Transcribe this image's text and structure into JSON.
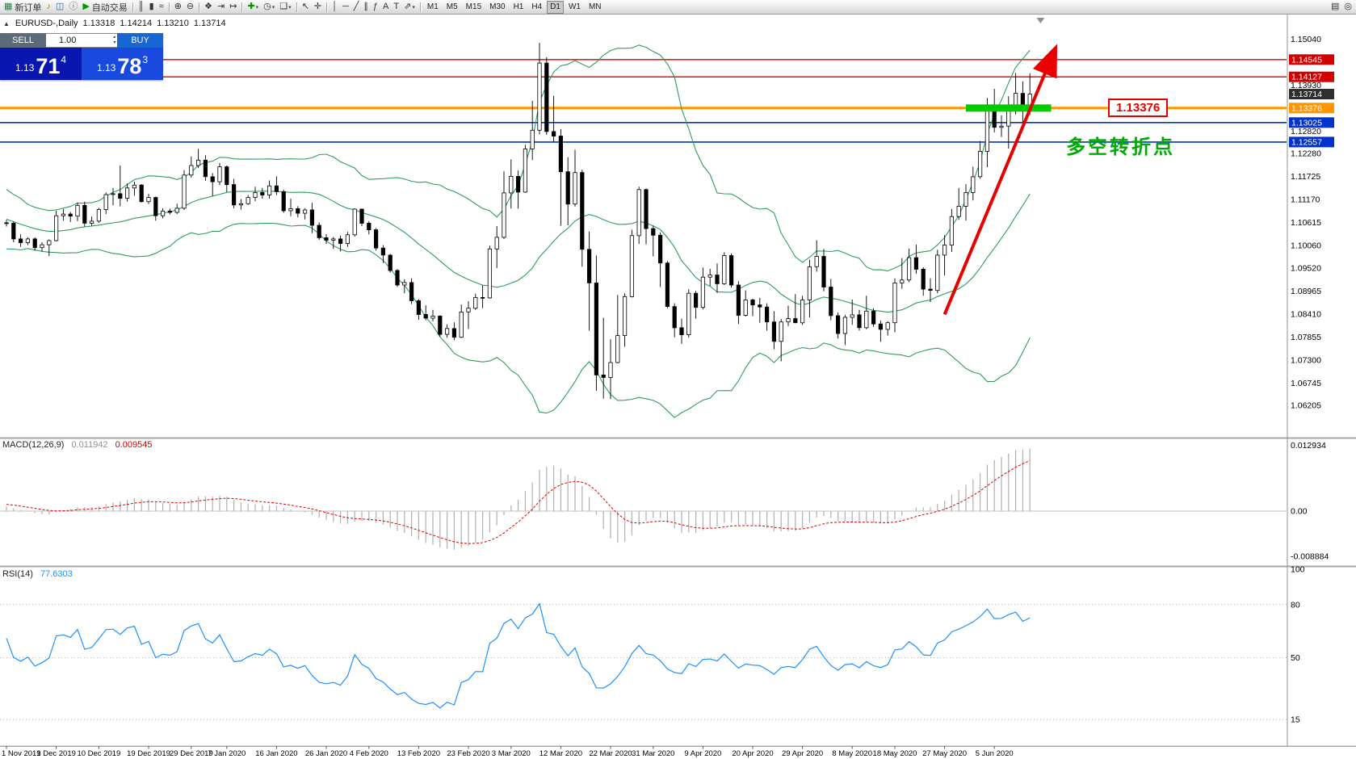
{
  "colors": {
    "up_candle": "#ffffff",
    "down_candle": "#000000",
    "candle_border": "#000000",
    "bollinger": "#2e9e5b",
    "macd_hist": "#b4b4b4",
    "macd_signal": "#e00000",
    "rsi_line": "#1e90ff",
    "level_red": "#d40000",
    "level_blue": "#0033cc",
    "level_orange": "#ff9500",
    "zone_green": "#00cc00",
    "arrow_red": "#e80000",
    "annotation_green": "#00aa00",
    "current_badge": "#2f2f2f"
  },
  "toolbar": {
    "groups": [
      [
        {
          "name": "new-order-button",
          "glyph": "▦",
          "icon_name": "new-order-icon",
          "label": "新订单",
          "color": "#2e7d4f"
        },
        {
          "name": "alerts-icon",
          "glyph": "♪",
          "color": "#b08800"
        },
        {
          "name": "market-watch-icon",
          "glyph": "◫",
          "color": "#336699"
        },
        {
          "name": "info-icon",
          "glyph": "ⓘ",
          "color": "#666666"
        },
        {
          "name": "auto-trading-button",
          "glyph": "▶",
          "icon_name": "play-icon",
          "label": "自动交易",
          "color": "#009900"
        }
      ],
      [
        {
          "name": "bar-chart-icon",
          "glyph": "║"
        },
        {
          "name": "candlestick-chart-icon",
          "glyph": "▮"
        },
        {
          "name": "line-chart-icon",
          "glyph": "≈"
        }
      ],
      [
        {
          "name": "zoom-in-icon",
          "glyph": "⊕"
        },
        {
          "name": "zoom-out-icon",
          "glyph": "⊖"
        }
      ],
      [
        {
          "name": "tile-windows-icon",
          "glyph": "❖"
        },
        {
          "name": "auto-scroll-icon",
          "glyph": "⇥"
        },
        {
          "name": "chart-shift-icon",
          "glyph": "↦"
        }
      ],
      [
        {
          "name": "indicators-icon",
          "glyph": "✚",
          "color": "#009900",
          "dropdown": true
        },
        {
          "name": "periods-icon",
          "glyph": "◷",
          "dropdown": true
        },
        {
          "name": "templates-icon",
          "glyph": "❏",
          "dropdown": true
        }
      ],
      [
        {
          "name": "cursor-icon",
          "glyph": "↖"
        },
        {
          "name": "crosshair-icon",
          "glyph": "✛"
        }
      ],
      [
        {
          "name": "vertical-line-icon",
          "glyph": "│"
        },
        {
          "name": "horizontal-line-icon",
          "glyph": "─"
        },
        {
          "name": "trendline-icon",
          "glyph": "╱"
        },
        {
          "name": "channel-icon",
          "glyph": "∥"
        },
        {
          "name": "fibonacci-icon",
          "glyph": "ƒ"
        },
        {
          "name": "text-icon",
          "glyph": "A"
        },
        {
          "name": "label-icon",
          "glyph": "T"
        },
        {
          "name": "arrows-icon",
          "glyph": "⇗",
          "dropdown": true
        }
      ]
    ],
    "timeframes": [
      "M1",
      "M5",
      "M15",
      "M30",
      "H1",
      "H4",
      "D1",
      "W1",
      "MN"
    ],
    "active_timeframe": "D1",
    "right_icons": [
      {
        "name": "print-icon",
        "glyph": "▤"
      },
      {
        "name": "search-icon",
        "glyph": "◎"
      }
    ]
  },
  "chart_header": {
    "collapse_glyph": "▲",
    "symbol": "EURUSD-,Daily",
    "open": "1.13318",
    "high": "1.14214",
    "low": "1.13210",
    "close": "1.13714"
  },
  "quote_panel": {
    "sell_label": "SELL",
    "buy_label": "BUY",
    "volume": "1.00",
    "bid_prefix": "1.13",
    "bid_big": "71",
    "bid_pip": "4",
    "ask_prefix": "1.13",
    "ask_big": "78",
    "ask_pip": "3",
    "spinner_up": "▴",
    "spinner_down": "▾"
  },
  "indicators": {
    "macd": {
      "label": "MACD(12,26,9)",
      "value_main": "0.011942",
      "value_signal": "0.009545",
      "scale": [
        {
          "text": "0.012934",
          "value": 0.012934
        },
        {
          "text": "0.00",
          "value": 0
        },
        {
          "text": "-0.008884",
          "value": -0.008884
        }
      ],
      "fast": 12,
      "slow": 26,
      "signal": 9
    },
    "rsi": {
      "label": "RSI(14)",
      "value": "77.6303",
      "period": 14,
      "scale": [
        {
          "text": "100",
          "value": 100
        },
        {
          "text": "80",
          "value": 80
        },
        {
          "text": "50",
          "value": 50
        },
        {
          "text": "15",
          "value": 15
        }
      ],
      "level_lines": [
        80,
        50,
        15
      ]
    },
    "bollinger": {
      "period": 20,
      "deviation": 2
    }
  },
  "levels": [
    {
      "label": "1.14545",
      "price": 1.14545,
      "color": "#d40000",
      "width": 1.3
    },
    {
      "label": "1.14127",
      "price": 1.14127,
      "color": "#d40000",
      "width": 1.3
    },
    {
      "label": "1.13376",
      "price": 1.13376,
      "color": "#ff9500",
      "width": 3
    },
    {
      "label": "1.13025",
      "price": 1.13025,
      "color": "#0033cc",
      "width": 1.6
    },
    {
      "label": "1.12557",
      "price": 1.12557,
      "color": "#0033cc",
      "width": 1.6
    }
  ],
  "current_price": {
    "label": "1.13714",
    "price": 1.13714
  },
  "price_scale_ticks": [
    "1.15040",
    "1.13930",
    "1.12820",
    "1.12280",
    "1.11725",
    "1.11170",
    "1.10615",
    "1.10060",
    "1.09520",
    "1.08965",
    "1.08410",
    "1.07855",
    "1.07300",
    "1.06745",
    "1.06205"
  ],
  "annotations": {
    "price_label": "1.13376",
    "turning_point_text": "多空转折点",
    "green_zone": {
      "from_bar": 135,
      "to_bar": 147,
      "price": 1.13376,
      "height": 9
    },
    "arrow": {
      "from_bar": 132,
      "from_price": 1.084,
      "to_bar": 147.5,
      "to_price": 1.1478,
      "width": 4
    },
    "shift_marker_bar": 145.5
  },
  "date_labels": [
    {
      "text": "1 Nov 2019",
      "bar": 0
    },
    {
      "text": "1 Dec 2019",
      "bar": 7
    },
    {
      "text": "10 Dec 2019",
      "bar": 13
    },
    {
      "text": "19 Dec 2019",
      "bar": 20
    },
    {
      "text": "29 Dec 2019",
      "bar": 26
    },
    {
      "text": "7 Jan 2020",
      "bar": 31
    },
    {
      "text": "16 Jan 2020",
      "bar": 38
    },
    {
      "text": "26 Jan 2020",
      "bar": 45
    },
    {
      "text": "4 Feb 2020",
      "bar": 51
    },
    {
      "text": "13 Feb 2020",
      "bar": 58
    },
    {
      "text": "23 Feb 2020",
      "bar": 65
    },
    {
      "text": "3 Mar 2020",
      "bar": 71
    },
    {
      "text": "12 Mar 2020",
      "bar": 78
    },
    {
      "text": "22 Mar 2020",
      "bar": 85
    },
    {
      "text": "31 Mar 2020",
      "bar": 91
    },
    {
      "text": "9 Apr 2020",
      "bar": 98
    },
    {
      "text": "20 Apr 2020",
      "bar": 105
    },
    {
      "text": "29 Apr 2020",
      "bar": 112
    },
    {
      "text": "8 May 2020",
      "bar": 119
    },
    {
      "text": "18 May 2020",
      "bar": 125
    },
    {
      "text": "27 May 2020",
      "bar": 132
    },
    {
      "text": "5 Jun 2020",
      "bar": 139
    }
  ],
  "chart_data": {
    "type": "candlestick",
    "symbol": "EURUSD",
    "period": "Daily",
    "warmup_closes": [
      1.093,
      1.0971,
      1.1004,
      1.1025,
      1.1032,
      1.1026,
      1.1074,
      1.107,
      1.1124,
      1.1128,
      1.1152,
      1.1144,
      1.1129,
      1.1134,
      1.1106,
      1.1086,
      1.1072,
      1.107,
      1.1052,
      1.1031,
      1.1016,
      1.1012,
      1.1023,
      1.1052,
      1.1071,
      1.1078,
      1.1074,
      1.1063,
      1.1058,
      1.1061
    ],
    "candles": [
      [
        1.1061,
        1.1068,
        1.1052,
        1.106
      ],
      [
        1.106,
        1.1064,
        1.1014,
        1.1022
      ],
      [
        1.1022,
        1.1033,
        1.1003,
        1.1013
      ],
      [
        1.1013,
        1.1026,
        1.1007,
        1.1022
      ],
      [
        1.1022,
        1.1026,
        1.0994,
        1.1001
      ],
      [
        1.1001,
        1.1014,
        1.0992,
        1.1008
      ],
      [
        1.1008,
        1.1021,
        1.0981,
        1.1018
      ],
      [
        1.1018,
        1.109,
        1.1016,
        1.1078
      ],
      [
        1.1078,
        1.1094,
        1.1066,
        1.1082
      ],
      [
        1.1082,
        1.1087,
        1.1063,
        1.1077
      ],
      [
        1.1077,
        1.111,
        1.1065,
        1.1103
      ],
      [
        1.1103,
        1.1112,
        1.1052,
        1.106
      ],
      [
        1.106,
        1.1076,
        1.1054,
        1.1065
      ],
      [
        1.1065,
        1.1097,
        1.1061,
        1.1093
      ],
      [
        1.1093,
        1.1134,
        1.1082,
        1.1129
      ],
      [
        1.1129,
        1.1145,
        1.1103,
        1.1131
      ],
      [
        1.1131,
        1.1199,
        1.1101,
        1.112
      ],
      [
        1.112,
        1.1156,
        1.1112,
        1.1145
      ],
      [
        1.1145,
        1.116,
        1.1126,
        1.1152
      ],
      [
        1.1152,
        1.1154,
        1.111,
        1.1112
      ],
      [
        1.1112,
        1.1131,
        1.1106,
        1.1122
      ],
      [
        1.1122,
        1.1124,
        1.1066,
        1.1078
      ],
      [
        1.1078,
        1.1096,
        1.1072,
        1.1089
      ],
      [
        1.1089,
        1.1095,
        1.1081,
        1.1086
      ],
      [
        1.1086,
        1.1107,
        1.1082,
        1.1096
      ],
      [
        1.1096,
        1.1188,
        1.1092,
        1.1176
      ],
      [
        1.1176,
        1.1221,
        1.117,
        1.1199
      ],
      [
        1.1199,
        1.1239,
        1.1193,
        1.1212
      ],
      [
        1.1212,
        1.1224,
        1.1162,
        1.1172
      ],
      [
        1.1172,
        1.1181,
        1.1125,
        1.116
      ],
      [
        1.116,
        1.1205,
        1.1152,
        1.1196
      ],
      [
        1.1196,
        1.1199,
        1.1135,
        1.1153
      ],
      [
        1.1153,
        1.1167,
        1.1096,
        1.1104
      ],
      [
        1.1104,
        1.1118,
        1.1093,
        1.1107
      ],
      [
        1.1107,
        1.1128,
        1.1104,
        1.1122
      ],
      [
        1.1122,
        1.1148,
        1.1113,
        1.1134
      ],
      [
        1.1134,
        1.1145,
        1.1119,
        1.1128
      ],
      [
        1.1128,
        1.1163,
        1.1119,
        1.115
      ],
      [
        1.115,
        1.1173,
        1.1128,
        1.1136
      ],
      [
        1.1136,
        1.1141,
        1.1085,
        1.109
      ],
      [
        1.109,
        1.1119,
        1.1077,
        1.1095
      ],
      [
        1.1095,
        1.1101,
        1.1074,
        1.1084
      ],
      [
        1.1084,
        1.1096,
        1.1069,
        1.1092
      ],
      [
        1.1092,
        1.1109,
        1.1036,
        1.1055
      ],
      [
        1.1055,
        1.1062,
        1.102,
        1.1025
      ],
      [
        1.1025,
        1.1034,
        1.101,
        1.1019
      ],
      [
        1.1019,
        1.1027,
        1.0998,
        1.1022
      ],
      [
        1.1022,
        1.103,
        1.0992,
        1.1011
      ],
      [
        1.1011,
        1.1039,
        1.1003,
        1.1032
      ],
      [
        1.1032,
        1.1096,
        1.1028,
        1.1094
      ],
      [
        1.1094,
        1.1095,
        1.1053,
        1.106
      ],
      [
        1.106,
        1.1065,
        1.1033,
        1.1044
      ],
      [
        1.1044,
        1.1048,
        1.0994,
        1.1
      ],
      [
        1.1,
        1.1007,
        1.0964,
        1.0983
      ],
      [
        1.0983,
        1.0986,
        1.0941,
        1.0946
      ],
      [
        1.0946,
        1.0949,
        1.0906,
        1.0911
      ],
      [
        1.0911,
        1.0925,
        1.0891,
        1.0917
      ],
      [
        1.0917,
        1.0927,
        1.0865,
        1.0873
      ],
      [
        1.0873,
        1.0877,
        1.0827,
        1.084
      ],
      [
        1.084,
        1.0862,
        1.0826,
        1.0831
      ],
      [
        1.0831,
        1.0851,
        1.0823,
        1.0836
      ],
      [
        1.0836,
        1.0838,
        1.0786,
        1.0792
      ],
      [
        1.0792,
        1.0816,
        1.0784,
        1.0806
      ],
      [
        1.0806,
        1.0821,
        1.0778,
        1.0785
      ],
      [
        1.0785,
        1.0864,
        1.0783,
        1.0846
      ],
      [
        1.0846,
        1.0872,
        1.0805,
        1.0855
      ],
      [
        1.0855,
        1.089,
        1.0851,
        1.0881
      ],
      [
        1.0881,
        1.091,
        1.0855,
        1.088
      ],
      [
        1.088,
        1.1006,
        1.0878,
        1.0998
      ],
      [
        1.0998,
        1.1053,
        1.0952,
        1.1026
      ],
      [
        1.1026,
        1.1185,
        1.1022,
        1.1133
      ],
      [
        1.1133,
        1.1214,
        1.1095,
        1.1173
      ],
      [
        1.1173,
        1.1187,
        1.1095,
        1.1135
      ],
      [
        1.1135,
        1.1249,
        1.1133,
        1.1239
      ],
      [
        1.1239,
        1.1355,
        1.1212,
        1.1284
      ],
      [
        1.1284,
        1.1495,
        1.1274,
        1.1446
      ],
      [
        1.1446,
        1.146,
        1.1273,
        1.1281
      ],
      [
        1.1281,
        1.1367,
        1.1256,
        1.127
      ],
      [
        1.127,
        1.1287,
        1.1054,
        1.1184
      ],
      [
        1.1184,
        1.1219,
        1.1055,
        1.1106
      ],
      [
        1.1106,
        1.1237,
        1.11,
        1.1182
      ],
      [
        1.1182,
        1.1189,
        1.0955,
        1.0997
      ],
      [
        1.0997,
        1.104,
        1.0801,
        1.0916
      ],
      [
        1.0916,
        1.0982,
        1.0656,
        1.0694
      ],
      [
        1.0694,
        1.0832,
        1.0637,
        1.0688
      ],
      [
        1.0688,
        1.078,
        1.0636,
        1.0724
      ],
      [
        1.0724,
        1.0887,
        1.0722,
        1.0789
      ],
      [
        1.0789,
        1.0891,
        1.0762,
        1.0883
      ],
      [
        1.0883,
        1.1044,
        1.0881,
        1.103
      ],
      [
        1.103,
        1.1148,
        1.101,
        1.1141
      ],
      [
        1.1141,
        1.1144,
        1.1009,
        1.1047
      ],
      [
        1.1047,
        1.1054,
        1.098,
        1.1031
      ],
      [
        1.1031,
        1.1038,
        1.0906,
        1.0964
      ],
      [
        1.0964,
        1.0969,
        1.0855,
        1.0859
      ],
      [
        1.0859,
        1.0867,
        1.0785,
        1.0808
      ],
      [
        1.0808,
        1.083,
        1.0769,
        1.0791
      ],
      [
        1.0791,
        1.0901,
        1.0784,
        1.0891
      ],
      [
        1.0891,
        1.0897,
        1.083,
        1.0857
      ],
      [
        1.0857,
        1.0953,
        1.0852,
        1.093
      ],
      [
        1.093,
        1.095,
        1.0909,
        1.0935
      ],
      [
        1.0935,
        1.0963,
        1.0892,
        1.0914
      ],
      [
        1.0914,
        1.099,
        1.0911,
        1.0982
      ],
      [
        1.0982,
        1.0987,
        1.0905,
        1.0911
      ],
      [
        1.0911,
        1.092,
        1.0817,
        1.0838
      ],
      [
        1.0838,
        1.0898,
        1.0835,
        1.0875
      ],
      [
        1.0875,
        1.0878,
        1.0836,
        1.0863
      ],
      [
        1.0863,
        1.088,
        1.082,
        1.0858
      ],
      [
        1.0858,
        1.0867,
        1.0801,
        1.0822
      ],
      [
        1.0822,
        1.0848,
        1.0756,
        1.0775
      ],
      [
        1.0775,
        1.0829,
        1.0727,
        1.0822
      ],
      [
        1.0822,
        1.0861,
        1.0812,
        1.083
      ],
      [
        1.083,
        1.0889,
        1.0819,
        1.082
      ],
      [
        1.082,
        1.0885,
        1.0815,
        1.0875
      ],
      [
        1.0875,
        1.0972,
        1.0833,
        1.0955
      ],
      [
        1.0955,
        1.1019,
        1.0943,
        1.098
      ],
      [
        1.098,
        1.0998,
        1.0896,
        1.0906
      ],
      [
        1.0906,
        1.0926,
        1.0826,
        1.0837
      ],
      [
        1.0837,
        1.0845,
        1.0782,
        1.0794
      ],
      [
        1.0794,
        1.0839,
        1.0766,
        1.0833
      ],
      [
        1.0833,
        1.0876,
        1.0815,
        1.0839
      ],
      [
        1.0839,
        1.0851,
        1.0801,
        1.0808
      ],
      [
        1.0808,
        1.0885,
        1.0804,
        1.0848
      ],
      [
        1.0848,
        1.0855,
        1.081,
        1.0817
      ],
      [
        1.0817,
        1.0825,
        1.0774,
        1.0804
      ],
      [
        1.0804,
        1.0824,
        1.0789,
        1.082
      ],
      [
        1.082,
        1.0927,
        1.0797,
        1.0916
      ],
      [
        1.0916,
        1.0976,
        1.0902,
        1.0923
      ],
      [
        1.0923,
        1.0999,
        1.0918,
        1.0977
      ],
      [
        1.0977,
        1.1008,
        1.0938,
        1.0949
      ],
      [
        1.0949,
        1.0954,
        1.0885,
        1.0901
      ],
      [
        1.0901,
        1.0927,
        1.087,
        1.0898
      ],
      [
        1.0898,
        1.0996,
        1.0891,
        1.0983
      ],
      [
        1.0983,
        1.1031,
        1.0934,
        1.1007
      ],
      [
        1.1007,
        1.1094,
        1.0991,
        1.1076
      ],
      [
        1.1076,
        1.1145,
        1.1068,
        1.1101
      ],
      [
        1.1101,
        1.1154,
        1.1066,
        1.1134
      ],
      [
        1.1134,
        1.1196,
        1.1115,
        1.1172
      ],
      [
        1.1172,
        1.1258,
        1.1167,
        1.1233
      ],
      [
        1.1233,
        1.1362,
        1.1195,
        1.1336
      ],
      [
        1.1336,
        1.1384,
        1.1279,
        1.1291
      ],
      [
        1.1291,
        1.132,
        1.1268,
        1.1294
      ],
      [
        1.1294,
        1.1366,
        1.124,
        1.134
      ],
      [
        1.134,
        1.1422,
        1.1322,
        1.1373
      ],
      [
        1.1373,
        1.1402,
        1.1293,
        1.1332
      ],
      [
        1.13318,
        1.14214,
        1.1321,
        1.13714
      ]
    ]
  }
}
